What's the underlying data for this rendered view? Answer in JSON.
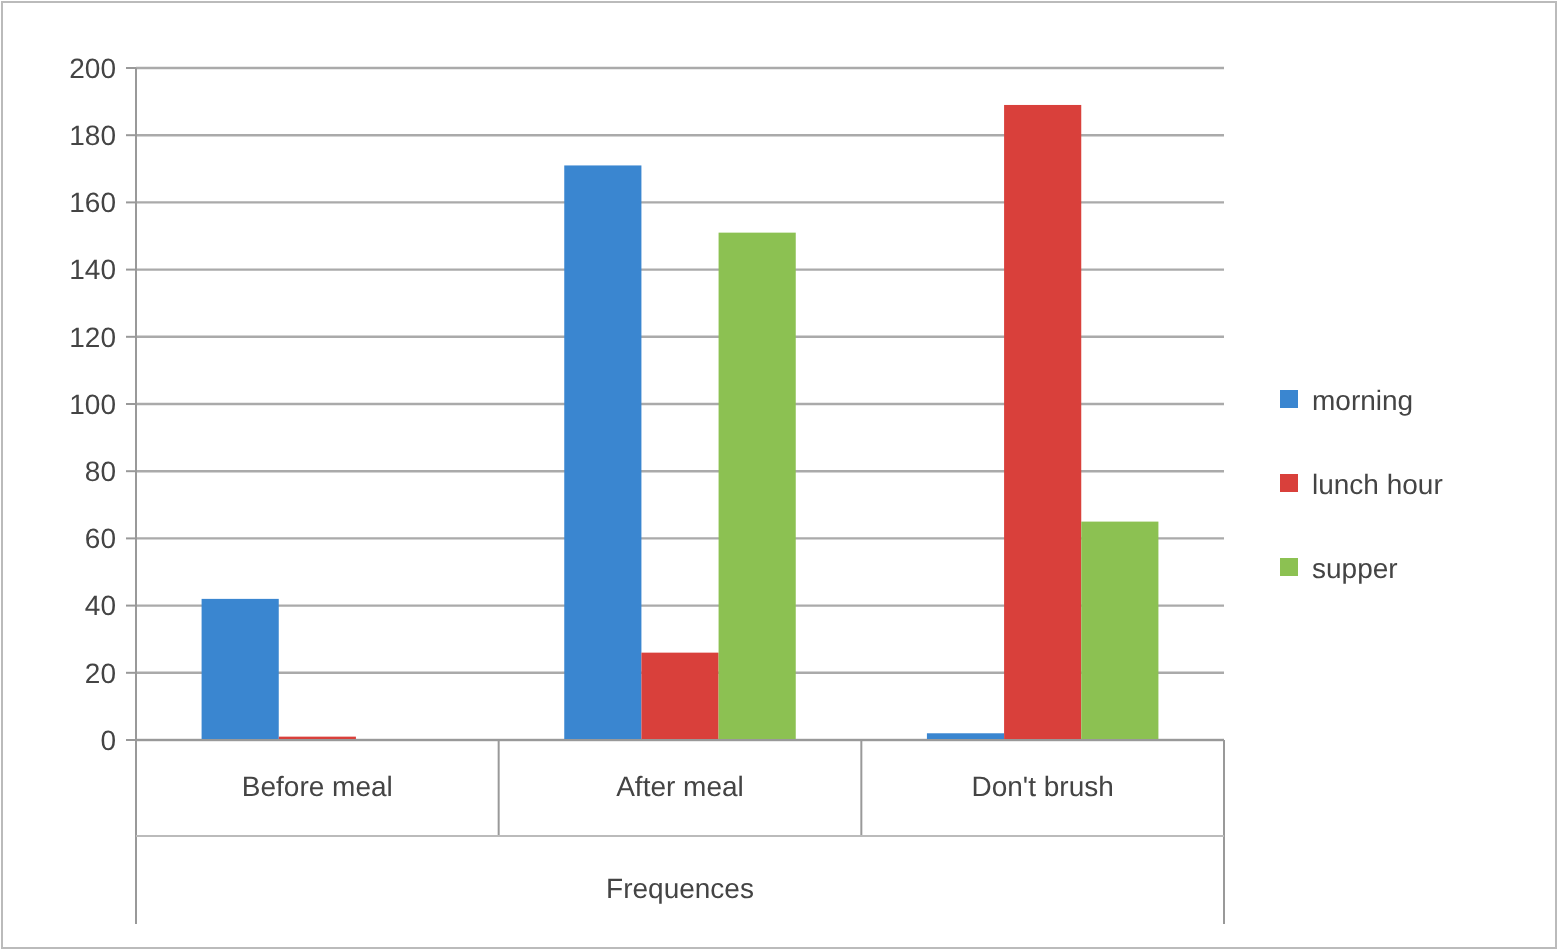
{
  "chart_data": {
    "type": "bar",
    "xlabel": "Frequences",
    "categories": [
      "Before meal",
      "After meal",
      "Don't brush"
    ],
    "series": [
      {
        "name": "morning",
        "color": "#3a86d0",
        "values": [
          42,
          171,
          2
        ]
      },
      {
        "name": "lunch hour",
        "color": "#d9403b",
        "values": [
          1,
          26,
          189
        ]
      },
      {
        "name": "supper",
        "color": "#8cc152",
        "values": [
          0,
          151,
          65
        ]
      }
    ],
    "ylim": [
      0,
      200
    ],
    "yticks": [
      0,
      20,
      40,
      60,
      80,
      100,
      120,
      140,
      160,
      180,
      200
    ],
    "grid": "y",
    "legend": "right"
  }
}
